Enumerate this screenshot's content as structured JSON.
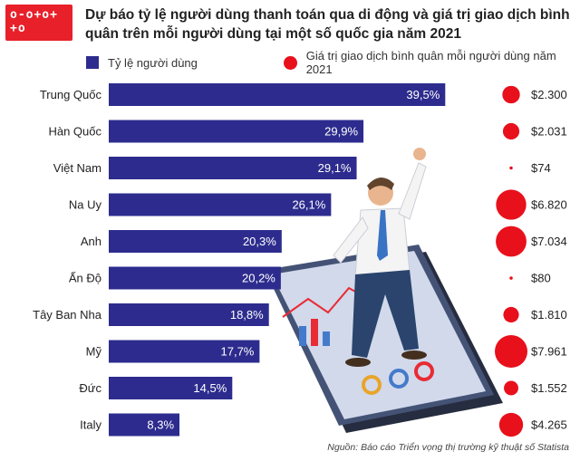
{
  "logo": {
    "text": "o-o+o+\n+o"
  },
  "title": "Dự báo tỷ lệ người dùng thanh toán qua di động và giá trị giao dịch bình quân trên mỗi người dùng tại một số quốc gia năm 2021",
  "source": "Nguồn: Báo cáo Triển vọng thị trường kỹ thuật số Statista",
  "colors": {
    "bar": "#2d2c8e",
    "dot": "#e8101b"
  },
  "chart_data": {
    "type": "bar",
    "orientation": "horizontal",
    "legend": [
      "Tỷ lệ người dùng",
      "Giá trị giao dịch bình quân mỗi người dùng năm 2021"
    ],
    "categories": [
      "Trung Quốc",
      "Hàn Quốc",
      "Việt Nam",
      "Na Uy",
      "Anh",
      "Ấn Độ",
      "Tây Ban Nha",
      "Mỹ",
      "Đức",
      "Italy"
    ],
    "series": [
      {
        "name": "Tỷ lệ người dùng",
        "values": [
          39.5,
          29.9,
          29.1,
          26.1,
          20.3,
          20.2,
          18.8,
          17.7,
          14.5,
          8.3
        ],
        "labels": [
          "39,5%",
          "29,9%",
          "29,1%",
          "26,1%",
          "20,3%",
          "20,2%",
          "18,8%",
          "17,7%",
          "14,5%",
          "8,3%"
        ]
      },
      {
        "name": "Giá trị giao dịch bình quân mỗi người dùng năm 2021",
        "values": [
          2300,
          2031,
          74,
          6820,
          7034,
          80,
          1810,
          7961,
          1552,
          4265
        ],
        "labels": [
          "$2.300",
          "$2.031",
          "$74",
          "$6.820",
          "$7.034",
          "$80",
          "$1.810",
          "$7.961",
          "$1.552",
          "$4.265"
        ]
      }
    ],
    "xlim": [
      0,
      40
    ]
  }
}
